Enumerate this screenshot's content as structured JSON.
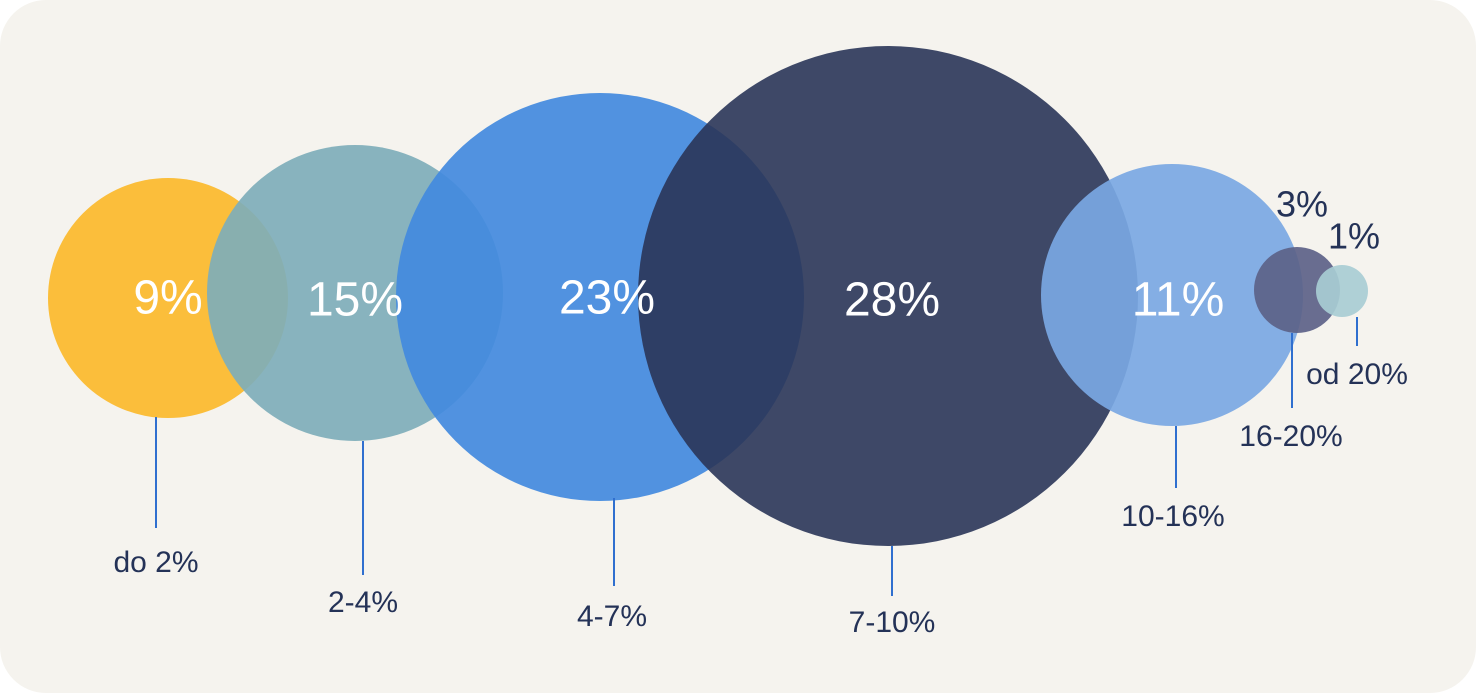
{
  "chart_data": {
    "type": "bubble",
    "title": "",
    "categories": [
      "do 2%",
      "2-4%",
      "4-7%",
      "7-10%",
      "10-16%",
      "16-20%",
      "od 20%"
    ],
    "values": [
      9,
      15,
      23,
      28,
      11,
      3,
      1
    ],
    "value_labels": [
      "9%",
      "15%",
      "23%",
      "28%",
      "11%",
      "3%",
      "1%"
    ],
    "colors": [
      "#fbba30",
      "#7eaeba",
      "#428ade",
      "#2a3558",
      "#7aa8e3",
      "#5c6288",
      "#a8cdd4"
    ],
    "label_color": "#243257",
    "grid": false,
    "legend": "none"
  }
}
